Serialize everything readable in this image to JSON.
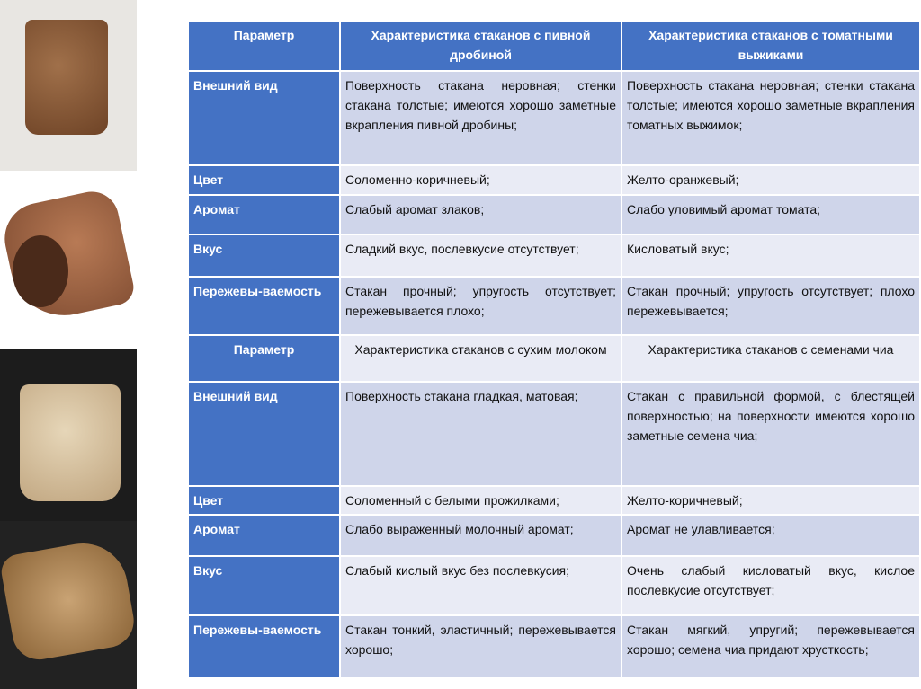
{
  "photos": [
    {
      "name": "brewers-grain-cup-photo"
    },
    {
      "name": "tomato-pomace-cup-photo"
    },
    {
      "name": "dry-milk-cup-photo"
    },
    {
      "name": "chia-seed-cup-photo"
    }
  ],
  "colors": {
    "header": "#4472c4",
    "row_dark": "#cfd5ea",
    "row_light": "#e9ebf5"
  },
  "table1": {
    "header": [
      "Параметр",
      "Характеристика стаканов с пивной дробиной",
      "Характеристика стаканов с томатными выжиками"
    ],
    "rows": [
      [
        "Внешний вид",
        "Поверхность стакана неровная; стенки стакана толстые; имеются хорошо заметные вкрапления пивной дробины;",
        "Поверхность стакана неровная; стенки стакана толстые; имеются хорошо заметные вкрапления томатных выжимок;"
      ],
      [
        "Цвет",
        "Соломенно-коричневый;",
        "Желто-оранжевый;"
      ],
      [
        "Аромат",
        "Слабый аромат злаков;",
        "Слабо уловимый аромат томата;"
      ],
      [
        "Вкус",
        "Сладкий вкус, послевкусие отсутствует;",
        "Кисловатый вкус;"
      ],
      [
        "Пережевы-ваемость",
        "Стакан прочный; упругость отсутствует; пережевывается плохо;",
        "Стакан прочный; упругость отсутствует; плохо пережевывается;"
      ]
    ]
  },
  "table2": {
    "header": [
      "Параметр",
      "Характеристика стаканов с сухим молоком",
      "Характеристика стаканов с семенами чиа"
    ],
    "rows": [
      [
        "Внешний вид",
        "Поверхность стакана гладкая, матовая;",
        "Стакан с правильной формой, с блестящей поверхностью; на поверхности имеются хорошо заметные семена чиа;"
      ],
      [
        "Цвет",
        "Соломенный с белыми прожилками;",
        "Желто-коричневый;"
      ],
      [
        "Аромат",
        "Слабо выраженный молочный аромат;",
        "Аромат не улавливается;"
      ],
      [
        "Вкус",
        "Слабый кислый вкус без послевкусия;",
        "Очень слабый кисловатый вкус, кислое послевкусие отсутствует;"
      ],
      [
        "Пережевы-ваемость",
        "Стакан тонкий, эластичный; пережевывается хорошо;",
        "Стакан мягкий, упругий; пережевывается хорошо; семена чиа придают хрусткость;"
      ]
    ]
  }
}
